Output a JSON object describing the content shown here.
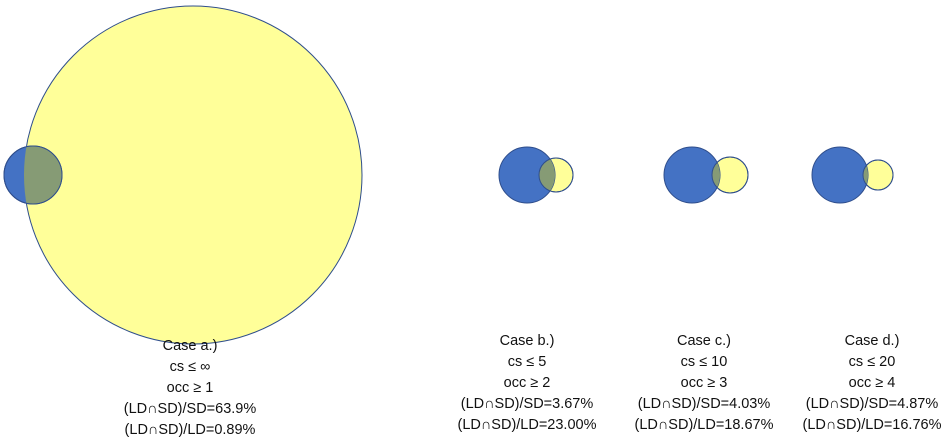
{
  "colors": {
    "ld_fill": "#4472C4",
    "sd_fill": "#FFFF99",
    "overlap_fill": "#869B75",
    "stroke": "#2F4E8C"
  },
  "cases": [
    {
      "title": "Case a.)",
      "cs": "cs  ≤ ∞",
      "occ": "occ  ≥ 1",
      "sd_ratio": "(LD∩SD)/SD=63.9%",
      "ld_ratio": "(LD∩SD)/LD=0.89%"
    },
    {
      "title": "Case b.)",
      "cs": "cs  ≤ 5",
      "occ": "occ  ≥ 2",
      "sd_ratio": "(LD∩SD)/SD=3.67%",
      "ld_ratio": "(LD∩SD)/LD=23.00%"
    },
    {
      "title": "Case c.)",
      "cs": "cs  ≤ 10",
      "occ": "occ  ≥ 3",
      "sd_ratio": "(LD∩SD)/SD=4.03%",
      "ld_ratio": "(LD∩SD)/LD=18.67%"
    },
    {
      "title": "Case d.)",
      "cs": "cs  ≤ 20",
      "occ": "occ  ≥ 4",
      "sd_ratio": "(LD∩SD)/SD=4.87%",
      "ld_ratio": "(LD∩SD)/LD=16.76%"
    }
  ]
}
